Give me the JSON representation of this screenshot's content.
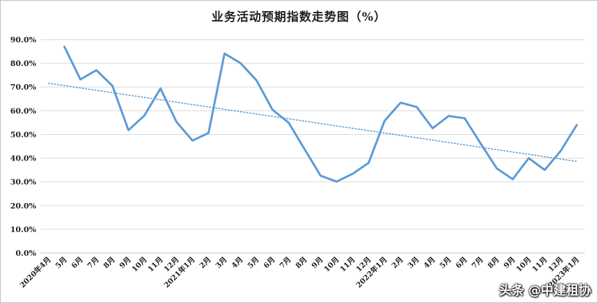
{
  "chart_data": {
    "type": "line",
    "title": "业务活动预期指数走势图（%）",
    "xlabel": "",
    "ylabel": "",
    "ylim": [
      0,
      90
    ],
    "y_ticks": [
      "0.0%",
      "10.0%",
      "20.0%",
      "30.0%",
      "40.0%",
      "50.0%",
      "60.0%",
      "70.0%",
      "80.0%",
      "90.0%"
    ],
    "grid": true,
    "legend": "none",
    "categories": [
      "2020年4月",
      "5月",
      "6月",
      "7月",
      "8月",
      "9月",
      "10月",
      "11月",
      "12月",
      "2021年1月",
      "2月",
      "3月",
      "4月",
      "5月",
      "6月",
      "7月",
      "8月",
      "9月",
      "10月",
      "11月",
      "12月",
      "2022年1月",
      "2月",
      "3月",
      "4月",
      "5月",
      "6月",
      "7月",
      "8月",
      "9月",
      "10月",
      "11月",
      "12月",
      "2023年1月"
    ],
    "series": [
      {
        "values": [
          null,
          87.0,
          73.2,
          77.1,
          70.5,
          51.8,
          58.0,
          69.4,
          55.3,
          47.4,
          50.6,
          84.1,
          80.1,
          72.8,
          60.4,
          55.0,
          43.8,
          32.6,
          30.1,
          33.4,
          38.0,
          55.8,
          63.4,
          61.6,
          52.6,
          57.8,
          56.8,
          46.1,
          35.7,
          31.1,
          40.0,
          35.0,
          43.1,
          54.0
        ],
        "color": "#5b9bd5",
        "style": "solid"
      },
      {
        "values": [
          71.6,
          70.6,
          69.6,
          68.6,
          67.6,
          66.6,
          65.6,
          64.6,
          63.6,
          62.6,
          61.6,
          60.6,
          59.6,
          58.6,
          57.6,
          56.6,
          55.6,
          54.6,
          53.6,
          52.6,
          51.6,
          50.6,
          49.6,
          48.6,
          47.6,
          46.6,
          45.6,
          44.6,
          43.6,
          42.6,
          41.6,
          40.6,
          39.6,
          38.6
        ],
        "color": "#5b9bd5",
        "style": "dotted"
      }
    ]
  },
  "watermark": "头条 @中建租协"
}
